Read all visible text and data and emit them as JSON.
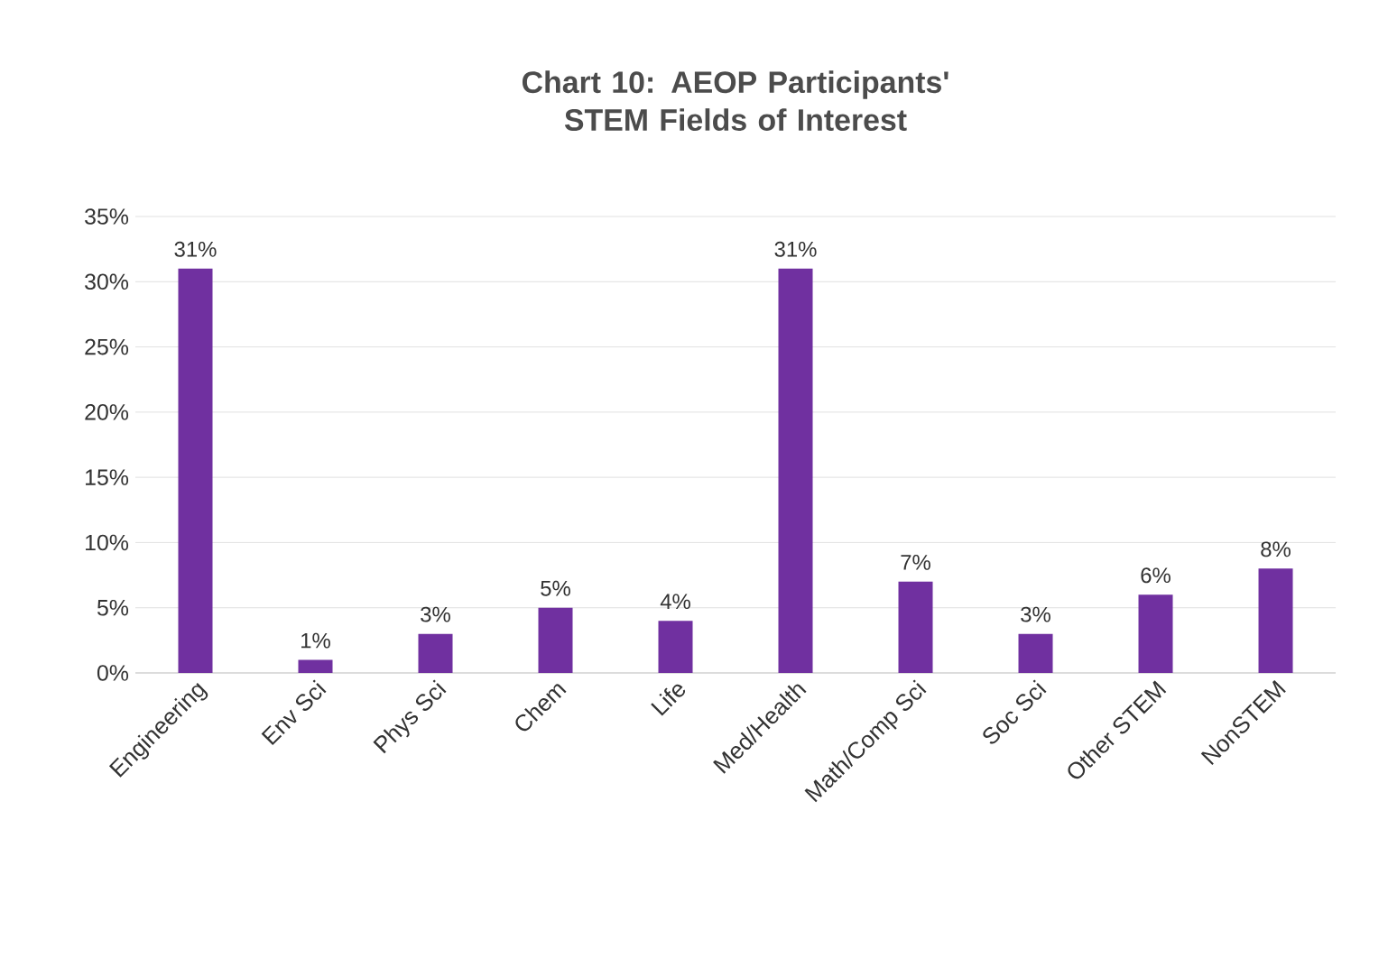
{
  "chart_data": {
    "type": "bar",
    "title": "Chart 10: AEOP Participants' STEM Fields of Interest",
    "categories": [
      "Engineering",
      "Env Sci",
      "Phys Sci",
      "Chem",
      "Life",
      "Med/Health",
      "Math/Comp Sci",
      "Soc Sci",
      "Other STEM",
      "NonSTEM"
    ],
    "values": [
      31,
      1,
      3,
      5,
      4,
      31,
      7,
      3,
      6,
      8
    ],
    "value_labels": [
      "31%",
      "1%",
      "3%",
      "5%",
      "4%",
      "31%",
      "7%",
      "3%",
      "6%",
      "8%"
    ],
    "color": "#7030a0",
    "ylim": [
      0,
      35
    ],
    "yticks": [
      {
        "value": 0,
        "label": "0%"
      },
      {
        "value": 5,
        "label": "5%"
      },
      {
        "value": 10,
        "label": "10%"
      },
      {
        "value": 15,
        "label": "15%"
      },
      {
        "value": 20,
        "label": "20%"
      },
      {
        "value": 25,
        "label": "25%"
      },
      {
        "value": 30,
        "label": "30%"
      },
      {
        "value": 35,
        "label": "35%"
      }
    ],
    "grid": "y"
  }
}
